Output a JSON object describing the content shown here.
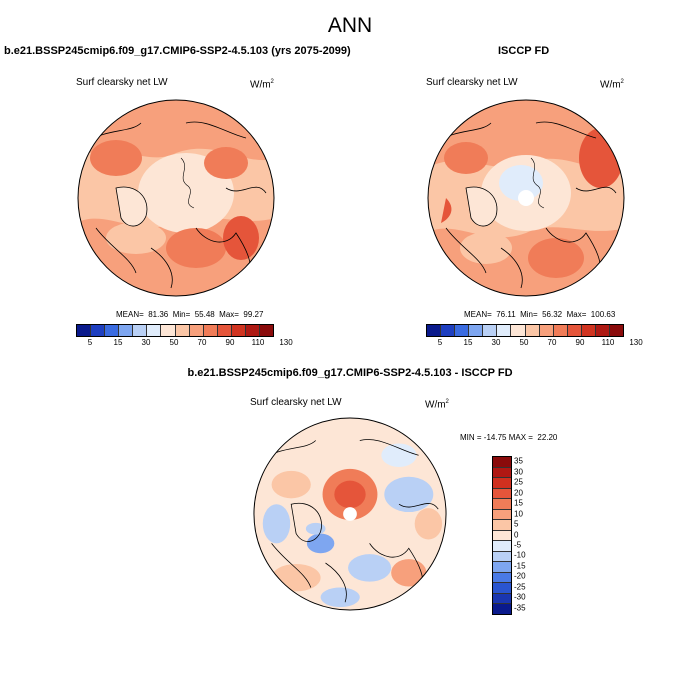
{
  "main_title": "ANN",
  "panels": {
    "model": {
      "title": "b.e21.BSSP245cmip6.f09_g17.CMIP6-SSP2-4.5.103 (yrs 2075-2099)",
      "variable": "Surf clearsky net LW",
      "units": "W/m",
      "units_exp": "2",
      "stats": "MEAN=  81.36  Min=  55.48  Max=  99.27"
    },
    "obs": {
      "title": "ISCCP FD",
      "variable": "Surf clearsky net LW",
      "units": "W/m",
      "units_exp": "2",
      "stats": "MEAN=  76.11  Min=  56.32  Max=  100.63"
    },
    "diff": {
      "title": "b.e21.BSSP245cmip6.f09_g17.CMIP6-SSP2-4.5.103 - ISCCP FD",
      "variable": "Surf clearsky net LW",
      "units": "W/m",
      "units_exp": "2",
      "stats": "MIN = -14.75 MAX =  22.20"
    }
  },
  "colorbar_main": {
    "colors": [
      "#0a1a8c",
      "#1e3fc0",
      "#3a6be0",
      "#7ea6f0",
      "#b9d0f5",
      "#e0ecfb",
      "#fde6d6",
      "#fbc6a6",
      "#f7a07c",
      "#f07c58",
      "#e5553a",
      "#d03420",
      "#ae1a14",
      "#8a0b0b"
    ],
    "tick_labels": [
      "5",
      "15",
      "30",
      "50",
      "70",
      "90",
      "110",
      "130"
    ]
  },
  "colorbar_diff": {
    "colors": [
      "#8a0b0b",
      "#b01813",
      "#d0301f",
      "#e5553a",
      "#f07c58",
      "#f7a07c",
      "#fbc6a6",
      "#fde6d6",
      "#e0ecfb",
      "#b9d0f5",
      "#7ea6f0",
      "#4a7ae6",
      "#2a55d0",
      "#1a36b0",
      "#0a1a8c"
    ],
    "tick_labels": [
      "35",
      "30",
      "25",
      "20",
      "15",
      "10",
      "5",
      "0",
      "-5",
      "-10",
      "-15",
      "-20",
      "-25",
      "-30",
      "-35"
    ]
  }
}
